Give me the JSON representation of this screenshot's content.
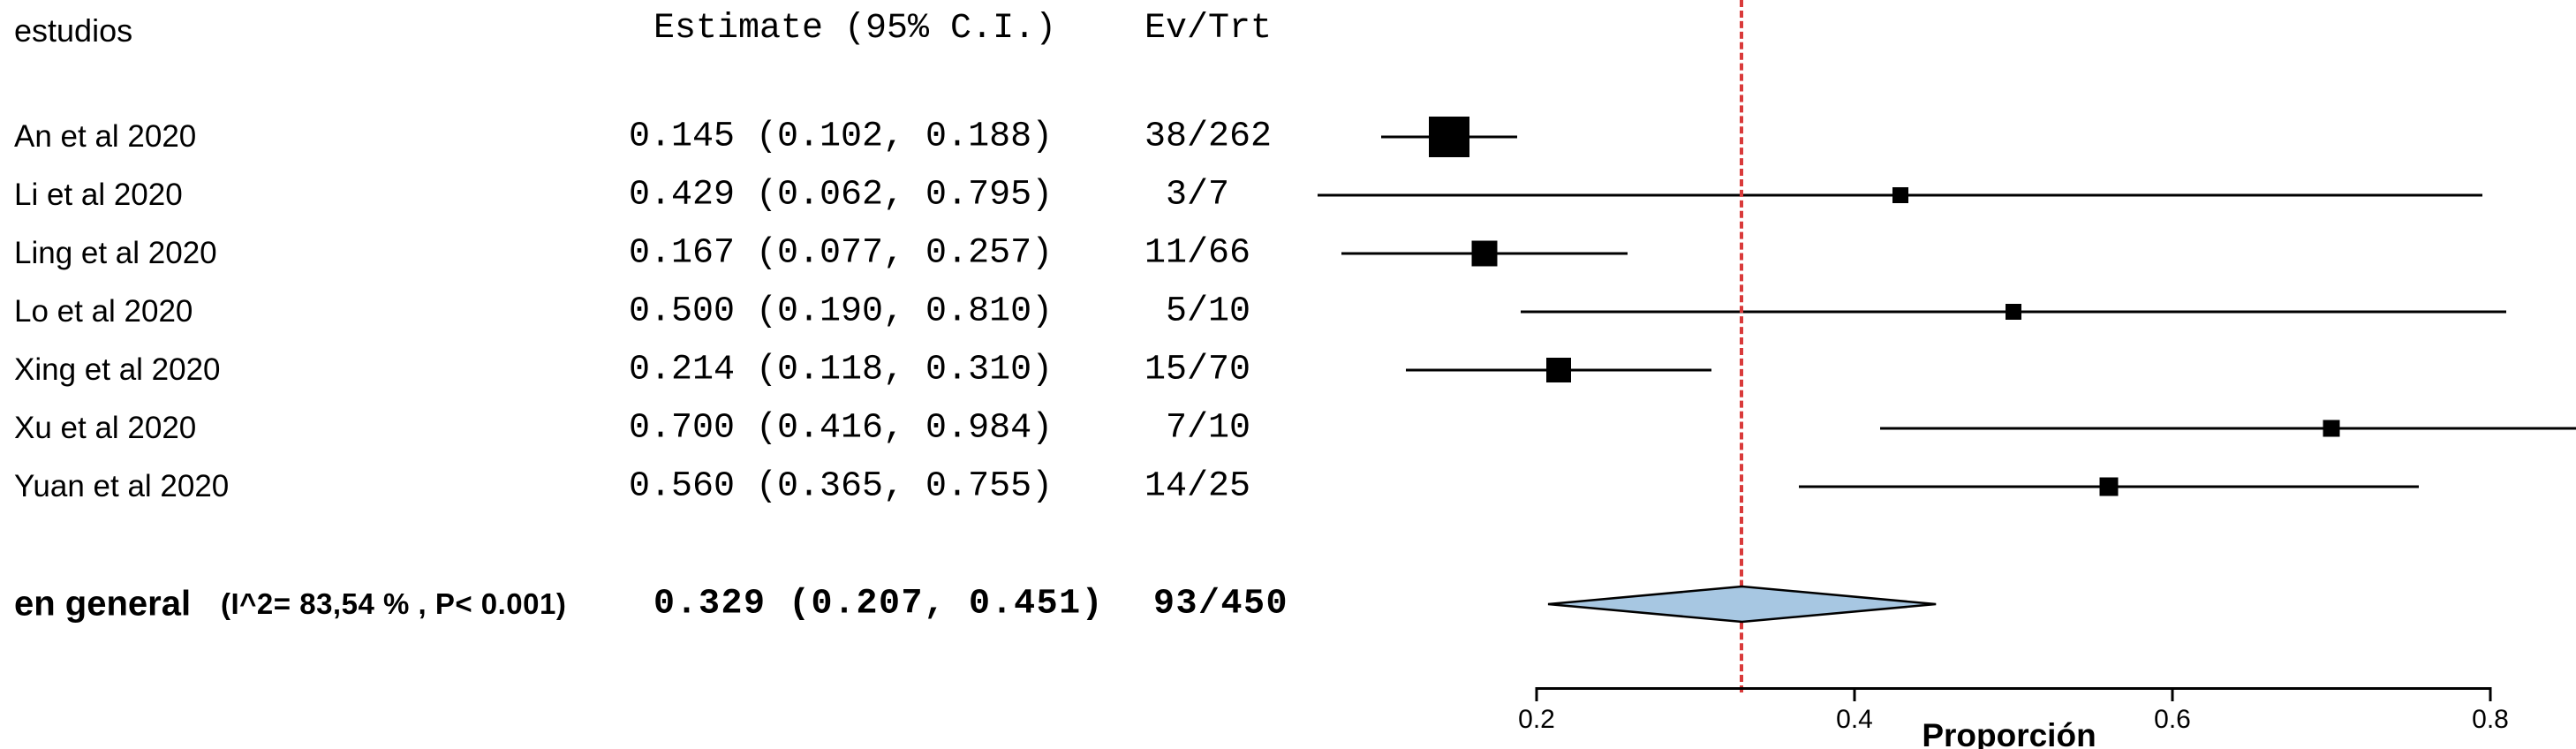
{
  "header": {
    "studies_col": "estudios",
    "estimate_col": "Estimate (95% C.I.)",
    "ev_trt_col": "Ev/Trt"
  },
  "chart_data": {
    "type": "forest",
    "title": "",
    "xlabel": "Proporción",
    "x_ticks": [
      0.2,
      0.4,
      0.6,
      0.8
    ],
    "xlim": [
      0.05,
      1.0
    ],
    "reference_line": 0.329,
    "studies": [
      {
        "label": "An et al 2020",
        "estimate": 0.145,
        "ci_low": 0.102,
        "ci_high": 0.188,
        "estimate_text": "0.145 (0.102, 0.188)",
        "ev_trt": "38/262"
      },
      {
        "label": "Li et al 2020",
        "estimate": 0.429,
        "ci_low": 0.062,
        "ci_high": 0.795,
        "estimate_text": "0.429 (0.062, 0.795)",
        "ev_trt": " 3/7"
      },
      {
        "label": "Ling et al 2020",
        "estimate": 0.167,
        "ci_low": 0.077,
        "ci_high": 0.257,
        "estimate_text": "0.167 (0.077, 0.257)",
        "ev_trt": "11/66"
      },
      {
        "label": "Lo et al 2020",
        "estimate": 0.5,
        "ci_low": 0.19,
        "ci_high": 0.81,
        "estimate_text": "0.500 (0.190, 0.810)",
        "ev_trt": " 5/10"
      },
      {
        "label": "Xing et al 2020",
        "estimate": 0.214,
        "ci_low": 0.118,
        "ci_high": 0.31,
        "estimate_text": "0.214 (0.118, 0.310)",
        "ev_trt": "15/70"
      },
      {
        "label": "Xu et al 2020",
        "estimate": 0.7,
        "ci_low": 0.416,
        "ci_high": 0.984,
        "estimate_text": "0.700 (0.416, 0.984)",
        "ev_trt": " 7/10"
      },
      {
        "label": "Yuan et al 2020",
        "estimate": 0.56,
        "ci_low": 0.365,
        "ci_high": 0.755,
        "estimate_text": "0.560 (0.365, 0.755)",
        "ev_trt": "14/25"
      }
    ],
    "overall": {
      "label": "en general",
      "heterogeneity": "(I^2= 83,54 % , P< 0.001)",
      "estimate": 0.329,
      "ci_low": 0.207,
      "ci_high": 0.451,
      "estimate_text": "0.329 (0.207, 0.451)",
      "ev_trt": "93/450"
    },
    "colors": {
      "marker": "#000000",
      "ci_line": "#000000",
      "diamond_fill": "#a7c7e2",
      "diamond_stroke": "#000000",
      "reference_line": "#d93a3a"
    },
    "legend": "none",
    "grid": false
  }
}
